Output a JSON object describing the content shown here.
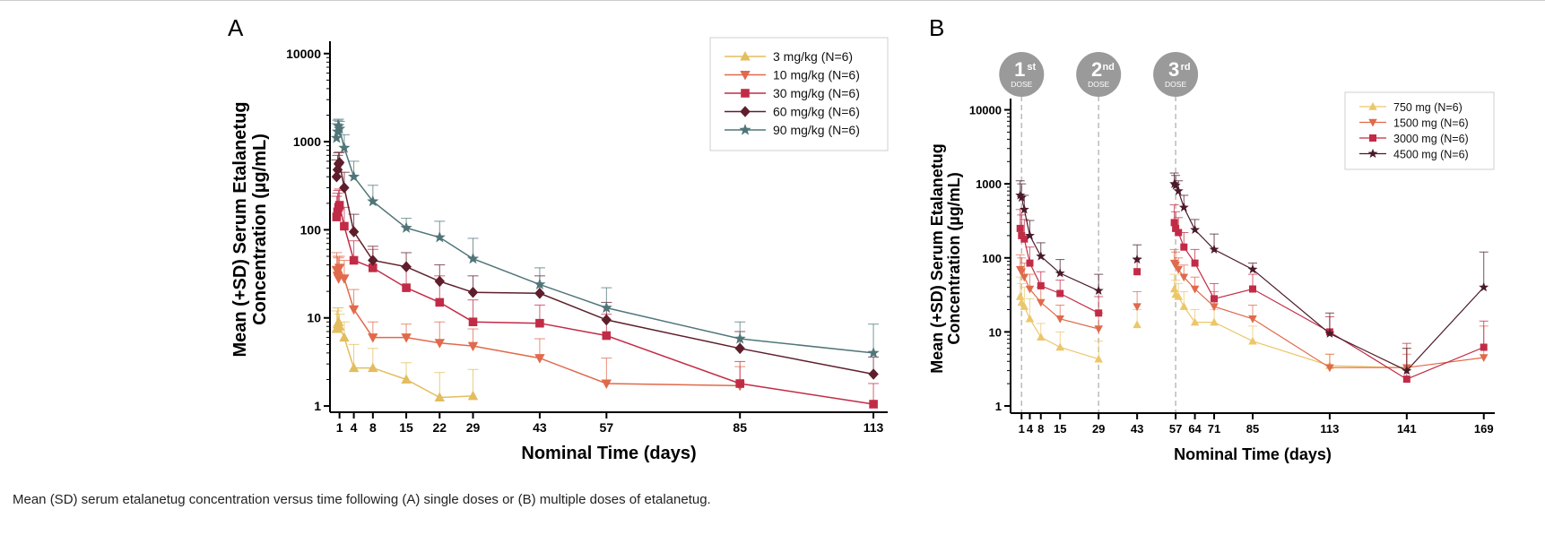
{
  "caption": "Mean (SD) serum etalanetug concentration versus time following (A) single doses or (B) multiple doses of etalanetug.",
  "chart_data": [
    {
      "type": "line",
      "panel_label": "A",
      "title": "",
      "xlabel": "Nominal Time (days)",
      "ylabel_line1": "Mean (+SD) Serum Etalanetug",
      "ylabel_line2": "Concentration (µg/mL)",
      "yscale": "log",
      "ylim": [
        0.85,
        12000
      ],
      "xlim": [
        -1,
        116
      ],
      "yticks": [
        1,
        10,
        100,
        1000,
        10000
      ],
      "ytick_labels": [
        "1",
        "10",
        "100",
        "1000",
        "10000"
      ],
      "xticks": [
        1,
        4,
        8,
        15,
        22,
        29,
        43,
        57,
        85,
        113
      ],
      "xtick_labels": [
        "1",
        "4",
        "8",
        "15",
        "22",
        "29",
        "43",
        "57",
        "85",
        "113"
      ],
      "legend_position": "top-right",
      "series": [
        {
          "name": "3 mg/kg (N=6)",
          "color": "#e3bd5e",
          "marker": "triangle-up",
          "x": [
            0.4,
            0.6,
            0.8,
            1,
            2,
            4,
            8,
            15,
            22,
            29
          ],
          "y": [
            7.5,
            8.5,
            9,
            8,
            6,
            2.7,
            2.7,
            2.0,
            1.25,
            1.3
          ],
          "sd": [
            12,
            13,
            13,
            11,
            9,
            5,
            4.5,
            3.1,
            2.4,
            2.6
          ]
        },
        {
          "name": "10 mg/kg (N=6)",
          "color": "#e06a4b",
          "marker": "triangle-down",
          "x": [
            0.4,
            0.6,
            0.8,
            1,
            2,
            4,
            8,
            15,
            22,
            29,
            43,
            57,
            85
          ],
          "y": [
            35,
            30,
            28,
            37,
            28,
            12.5,
            6,
            6,
            5.2,
            4.8,
            3.5,
            1.8,
            1.7
          ],
          "sd": [
            55,
            50,
            48,
            50,
            45,
            21,
            9,
            8.5,
            9,
            7.5,
            5.8,
            3.5,
            2.8
          ]
        },
        {
          "name": "30 mg/kg (N=6)",
          "color": "#c22b46",
          "marker": "square",
          "x": [
            0.4,
            0.6,
            0.8,
            1,
            2,
            4,
            8,
            15,
            22,
            29,
            43,
            57,
            85,
            113
          ],
          "y": [
            140,
            160,
            180,
            190,
            110,
            45,
            37,
            22,
            15,
            9,
            8.7,
            6.3,
            1.8,
            1.05
          ],
          "sd": [
            240,
            260,
            280,
            290,
            180,
            75,
            60,
            38,
            30,
            16,
            14,
            11,
            3.2,
            1.8
          ]
        },
        {
          "name": "60 mg/kg (N=6)",
          "color": "#5e1e2b",
          "marker": "diamond",
          "x": [
            0.4,
            0.6,
            0.8,
            1,
            2,
            4,
            8,
            15,
            22,
            29,
            43,
            57,
            85,
            113
          ],
          "y": [
            400,
            480,
            560,
            580,
            300,
            95,
            45,
            38,
            26,
            19.5,
            19,
            9.5,
            4.5,
            2.3
          ],
          "sd": [
            620,
            700,
            750,
            760,
            450,
            150,
            65,
            55,
            40,
            30,
            30,
            15,
            7,
            3.6
          ]
        },
        {
          "name": "90 mg/kg (N=6)",
          "color": "#507579",
          "marker": "star",
          "x": [
            0.4,
            0.6,
            0.8,
            1,
            2,
            4,
            8,
            15,
            22,
            29,
            43,
            57,
            85,
            113
          ],
          "y": [
            1100,
            1300,
            1500,
            1400,
            850,
            400,
            210,
            105,
            82,
            47,
            24,
            13,
            5.8,
            4.0
          ],
          "sd": [
            1600,
            1750,
            1800,
            1700,
            1200,
            600,
            320,
            135,
            125,
            80,
            37,
            22,
            9,
            8.5
          ]
        }
      ]
    },
    {
      "type": "line",
      "panel_label": "B",
      "title": "",
      "xlabel": "Nominal Time (days)",
      "ylabel_line1": "Mean (+SD) Serum Etalanetug",
      "ylabel_line2": "Concentration (µg/mL)",
      "yscale": "log",
      "ylim": [
        0.8,
        12000
      ],
      "xlim": [
        -3,
        173
      ],
      "yticks": [
        1,
        10,
        100,
        1000,
        10000
      ],
      "ytick_labels": [
        "1",
        "10",
        "100",
        "1000",
        "10000"
      ],
      "xticks": [
        1,
        4,
        8,
        15,
        29,
        43,
        57,
        64,
        71,
        85,
        113,
        141,
        169
      ],
      "xtick_labels": [
        "1",
        "4",
        "8",
        "15",
        "29",
        "43",
        "57",
        "64",
        "71",
        "85",
        "113",
        "141",
        "169"
      ],
      "legend_position": "top-right",
      "dose_markers": [
        {
          "day": 1,
          "num": "1",
          "sup": "st",
          "sub": "DOSE"
        },
        {
          "day": 29,
          "num": "2",
          "sup": "nd",
          "sub": "DOSE"
        },
        {
          "day": 57,
          "num": "3",
          "sup": "rd",
          "sub": "DOSE"
        }
      ],
      "series": [
        {
          "name": "750 mg (N=6)",
          "color": "#ecc76a",
          "marker": "triangle-up",
          "segments": [
            {
              "x": [
                0.5,
                1,
                2,
                4,
                8,
                15,
                29
              ],
              "y": [
                30,
                25,
                22,
                15,
                8.5,
                6.2,
                4.3
              ],
              "sd": [
                55,
                45,
                40,
                28,
                13,
                10,
                7.5
              ]
            },
            {
              "x": [
                43
              ],
              "y": [
                12.5
              ],
              "sd": [
                20
              ]
            },
            {
              "x": [
                56.5,
                57,
                58,
                60,
                64,
                71,
                85,
                113,
                141
              ],
              "y": [
                38,
                32,
                30,
                22,
                13.5,
                13.5,
                7.5,
                3.5,
                3.3
              ],
              "sd": [
                60,
                50,
                45,
                35,
                20,
                20,
                12,
                5,
                6
              ]
            }
          ]
        },
        {
          "name": "1500 mg (N=6)",
          "color": "#e06a4b",
          "marker": "triangle-down",
          "segments": [
            {
              "x": [
                0.5,
                1,
                2,
                4,
                8,
                15,
                29
              ],
              "y": [
                70,
                65,
                55,
                38,
                25,
                15,
                11
              ],
              "sd": [
                110,
                100,
                85,
                60,
                40,
                23,
                18
              ]
            },
            {
              "x": [
                43
              ],
              "y": [
                22
              ],
              "sd": [
                35
              ]
            },
            {
              "x": [
                56.5,
                57,
                58,
                60,
                64,
                71,
                85,
                113,
                141,
                169
              ],
              "y": [
                85,
                80,
                70,
                55,
                38,
                22,
                15,
                3.3,
                3.3,
                4.5
              ],
              "sd": [
                130,
                120,
                100,
                80,
                55,
                35,
                23,
                5,
                5,
                12
              ]
            }
          ]
        },
        {
          "name": "3000 mg (N=6)",
          "color": "#c22b46",
          "marker": "square",
          "segments": [
            {
              "x": [
                0.5,
                1,
                2,
                4,
                8,
                15,
                29
              ],
              "y": [
                250,
                200,
                180,
                85,
                42,
                33,
                18
              ],
              "sd": [
                450,
                380,
                330,
                140,
                65,
                50,
                30
              ]
            },
            {
              "x": [
                43
              ],
              "y": [
                65
              ],
              "sd": [
                100
              ]
            },
            {
              "x": [
                56.5,
                57,
                58,
                60,
                64,
                71,
                85,
                113,
                141,
                169
              ],
              "y": [
                300,
                250,
                220,
                140,
                85,
                28,
                38,
                10,
                2.3,
                6.2
              ],
              "sd": [
                520,
                420,
                350,
                220,
                130,
                45,
                60,
                16,
                7,
                14
              ]
            }
          ]
        },
        {
          "name": "4500 mg (N=6)",
          "color": "#4a1a2a",
          "marker": "star",
          "segments": [
            {
              "x": [
                0.5,
                1,
                2,
                4,
                8,
                15,
                29
              ],
              "y": [
                700,
                650,
                450,
                200,
                105,
                62,
                36
              ],
              "sd": [
                1100,
                1000,
                700,
                320,
                160,
                95,
                60
              ]
            },
            {
              "x": [
                43
              ],
              "y": [
                95
              ],
              "sd": [
                150
              ]
            },
            {
              "x": [
                56.5,
                57,
                58,
                60,
                64,
                71,
                85,
                113,
                141,
                169
              ],
              "y": [
                1000,
                950,
                800,
                480,
                240,
                130,
                70,
                9.5,
                3.0,
                40
              ],
              "sd": [
                1400,
                1300,
                1100,
                700,
                330,
                210,
                85,
                18,
                6,
                120
              ]
            }
          ]
        }
      ]
    }
  ]
}
